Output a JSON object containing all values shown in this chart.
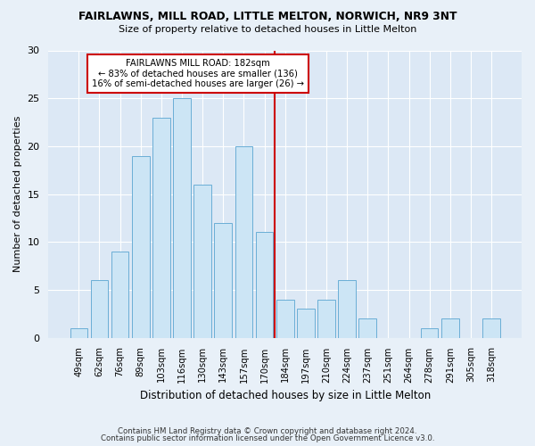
{
  "title1": "FAIRLAWNS, MILL ROAD, LITTLE MELTON, NORWICH, NR9 3NT",
  "title2": "Size of property relative to detached houses in Little Melton",
  "xlabel": "Distribution of detached houses by size in Little Melton",
  "ylabel": "Number of detached properties",
  "footer1": "Contains HM Land Registry data © Crown copyright and database right 2024.",
  "footer2": "Contains public sector information licensed under the Open Government Licence v3.0.",
  "bar_labels": [
    "49sqm",
    "62sqm",
    "76sqm",
    "89sqm",
    "103sqm",
    "116sqm",
    "130sqm",
    "143sqm",
    "157sqm",
    "170sqm",
    "184sqm",
    "197sqm",
    "210sqm",
    "224sqm",
    "237sqm",
    "251sqm",
    "264sqm",
    "278sqm",
    "291sqm",
    "305sqm",
    "318sqm"
  ],
  "bar_values": [
    1,
    6,
    9,
    19,
    23,
    25,
    16,
    12,
    20,
    11,
    4,
    3,
    4,
    6,
    2,
    0,
    0,
    1,
    2,
    0,
    2
  ],
  "bar_color": "#cce5f5",
  "bar_edge_color": "#6aaed6",
  "vline_x": 9.5,
  "vline_color": "#cc0000",
  "annotation_title": "FAIRLAWNS MILL ROAD: 182sqm",
  "annotation_line1": "← 83% of detached houses are smaller (136)",
  "annotation_line2": "16% of semi-detached houses are larger (26) →",
  "annotation_box_color": "#ffffff",
  "annotation_box_edge": "#cc0000",
  "ylim": [
    0,
    30
  ],
  "yticks": [
    0,
    5,
    10,
    15,
    20,
    25,
    30
  ],
  "fig_bg_color": "#e8f0f8",
  "plot_bg_color": "#dce8f5"
}
